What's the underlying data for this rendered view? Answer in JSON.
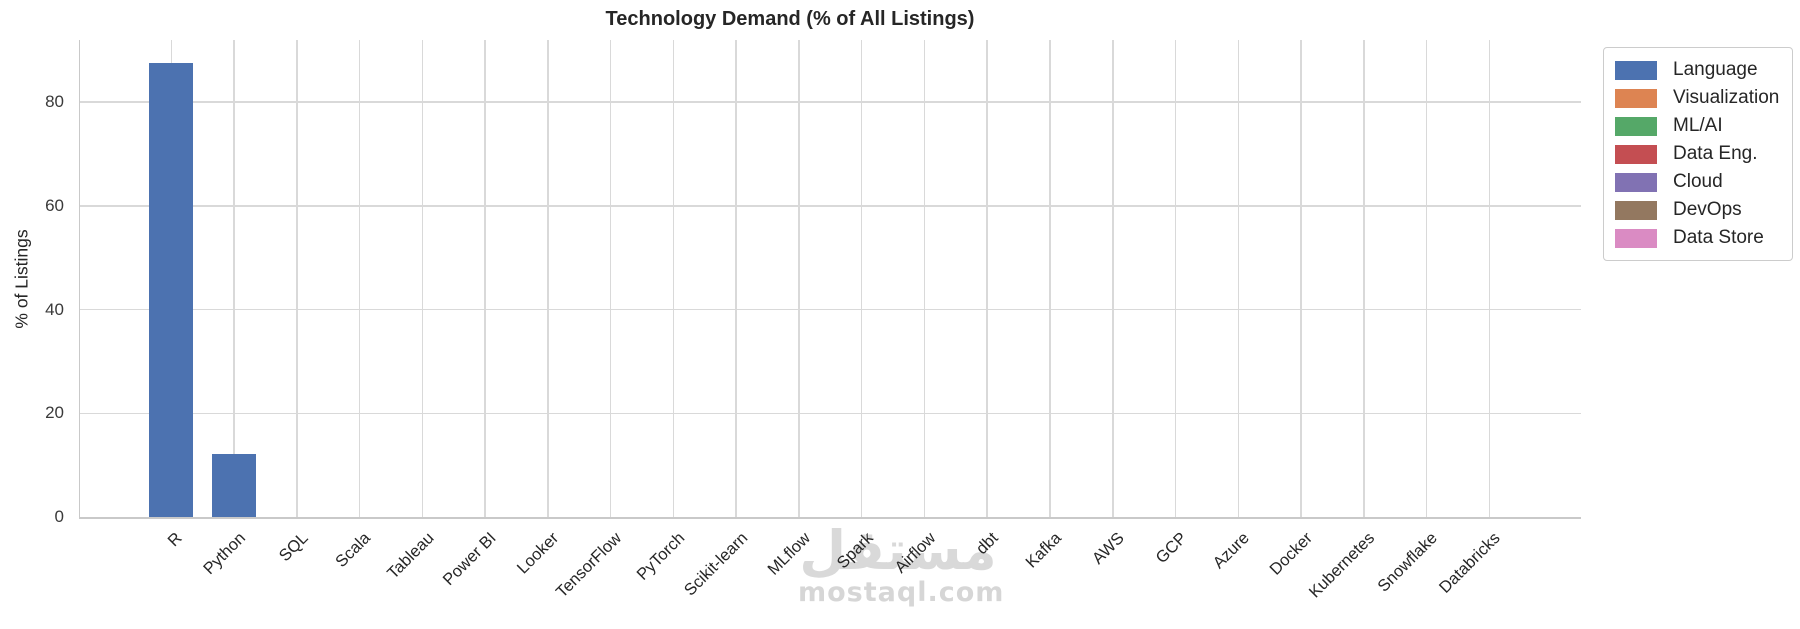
{
  "title": "Technology Demand (% of All Listings)",
  "watermark": {
    "logo_text": "مستقل",
    "site_text": "mostaql.com"
  },
  "chart_data": {
    "type": "bar",
    "title": "Technology Demand (% of All Listings)",
    "xlabel": "",
    "ylabel": "% of Listings",
    "ylim": [
      0,
      92
    ],
    "yticks": [
      0,
      20,
      40,
      60,
      80
    ],
    "grid": "both horizontal and vertical light-gray gridlines on white",
    "bar_color": "#4C72B0",
    "legend_position": "upper right, outside plot area",
    "categories": [
      "R",
      "Python",
      "SQL",
      "Scala",
      "Tableau",
      "Power BI",
      "Looker",
      "TensorFlow",
      "PyTorch",
      "Scikit-learn",
      "MLflow",
      "Spark",
      "Airflow",
      "dbt",
      "Kafka",
      "AWS",
      "GCP",
      "Azure",
      "Docker",
      "Kubernetes",
      "Snowflake",
      "Databricks"
    ],
    "values": [
      87.5,
      12.2,
      0,
      0,
      0,
      0,
      0,
      0,
      0,
      0,
      0,
      0,
      0,
      0,
      0,
      0,
      0,
      0,
      0,
      0,
      0,
      0
    ],
    "legend_entries": [
      {
        "label": "Language",
        "color": "#4C72B0"
      },
      {
        "label": "Visualization",
        "color": "#DD8452"
      },
      {
        "label": "ML/AI",
        "color": "#55A868"
      },
      {
        "label": "Data Eng.",
        "color": "#C44E52"
      },
      {
        "label": "Cloud",
        "color": "#8172B3"
      },
      {
        "label": "DevOps",
        "color": "#937860"
      },
      {
        "label": "Data Store",
        "color": "#DA8BC3"
      }
    ]
  }
}
